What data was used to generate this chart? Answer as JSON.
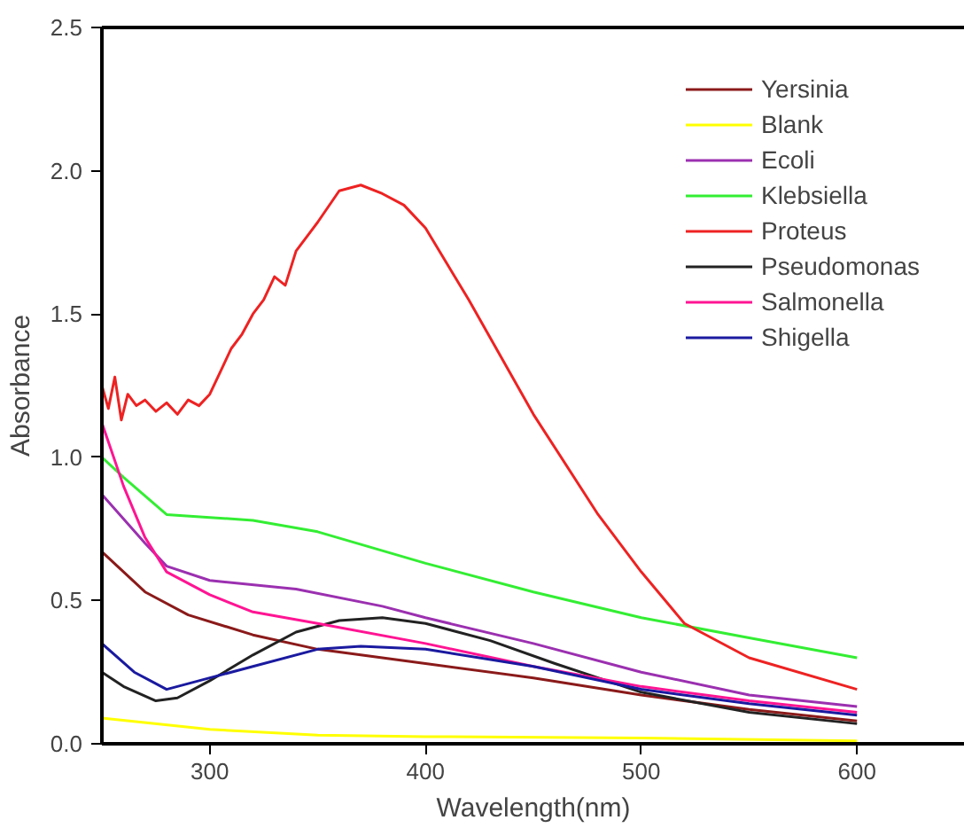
{
  "chart_data": {
    "type": "line",
    "xlabel": "Wavelength(nm)",
    "ylabel": "Absorbance",
    "xlim": [
      250,
      650
    ],
    "ylim": [
      0,
      2.5
    ],
    "xticks": [
      300,
      400,
      500,
      600
    ],
    "yticks": [
      {
        "value": 0,
        "label": "0.0"
      },
      0.5,
      {
        "value": 1,
        "label": "1.0"
      },
      1.5,
      {
        "value": 2,
        "label": "2.0"
      },
      2.5
    ],
    "grid": false,
    "legend": "top right",
    "marker": "none",
    "line_style": "solid",
    "series": [
      {
        "name": "Yersinia",
        "color": "#8b1a1a",
        "x": [
          250,
          270,
          290,
          320,
          350,
          400,
          450,
          500,
          550,
          600
        ],
        "values": [
          0.67,
          0.53,
          0.45,
          0.38,
          0.33,
          0.28,
          0.23,
          0.17,
          0.12,
          0.08
        ]
      },
      {
        "name": "Blank",
        "color": "#ffff00",
        "x": [
          250,
          300,
          350,
          400,
          500,
          600
        ],
        "values": [
          0.09,
          0.05,
          0.03,
          0.025,
          0.02,
          0.01
        ]
      },
      {
        "name": "Ecoli",
        "color": "#9b30b0",
        "x": [
          250,
          270,
          280,
          300,
          340,
          380,
          400,
          450,
          500,
          550,
          600
        ],
        "values": [
          0.87,
          0.7,
          0.62,
          0.57,
          0.54,
          0.48,
          0.44,
          0.35,
          0.25,
          0.17,
          0.13
        ]
      },
      {
        "name": "Klebsiella",
        "color": "#33ee33",
        "x": [
          250,
          260,
          280,
          300,
          320,
          350,
          400,
          450,
          500,
          550,
          600
        ],
        "values": [
          1.0,
          0.93,
          0.8,
          0.79,
          0.78,
          0.74,
          0.63,
          0.53,
          0.44,
          0.37,
          0.3
        ]
      },
      {
        "name": "Proteus",
        "color": "#ee2222",
        "x": [
          250,
          253,
          256,
          259,
          262,
          266,
          270,
          275,
          280,
          285,
          290,
          295,
          300,
          305,
          310,
          315,
          320,
          325,
          330,
          335,
          340,
          350,
          360,
          370,
          380,
          390,
          400,
          420,
          450,
          480,
          500,
          520,
          550,
          600
        ],
        "values": [
          1.25,
          1.17,
          1.28,
          1.13,
          1.22,
          1.18,
          1.2,
          1.16,
          1.19,
          1.15,
          1.2,
          1.18,
          1.22,
          1.3,
          1.38,
          1.43,
          1.5,
          1.55,
          1.63,
          1.6,
          1.72,
          1.82,
          1.93,
          1.95,
          1.92,
          1.88,
          1.8,
          1.55,
          1.15,
          0.8,
          0.6,
          0.42,
          0.3,
          0.19
        ]
      },
      {
        "name": "Pseudomonas",
        "color": "#222222",
        "x": [
          250,
          260,
          275,
          285,
          300,
          320,
          340,
          360,
          380,
          400,
          430,
          460,
          500,
          550,
          600
        ],
        "values": [
          0.25,
          0.2,
          0.15,
          0.16,
          0.22,
          0.31,
          0.39,
          0.43,
          0.44,
          0.42,
          0.36,
          0.28,
          0.18,
          0.11,
          0.07
        ]
      },
      {
        "name": "Salmonella",
        "color": "#ff1493",
        "x": [
          250,
          260,
          270,
          280,
          300,
          320,
          350,
          400,
          450,
          500,
          550,
          600
        ],
        "values": [
          1.12,
          0.9,
          0.72,
          0.6,
          0.52,
          0.46,
          0.42,
          0.35,
          0.27,
          0.2,
          0.15,
          0.11
        ]
      },
      {
        "name": "Shigella",
        "color": "#1a1aa0",
        "x": [
          250,
          265,
          280,
          300,
          320,
          350,
          370,
          400,
          450,
          500,
          550,
          600
        ],
        "values": [
          0.35,
          0.25,
          0.19,
          0.23,
          0.27,
          0.33,
          0.34,
          0.33,
          0.27,
          0.19,
          0.14,
          0.1
        ]
      }
    ]
  }
}
